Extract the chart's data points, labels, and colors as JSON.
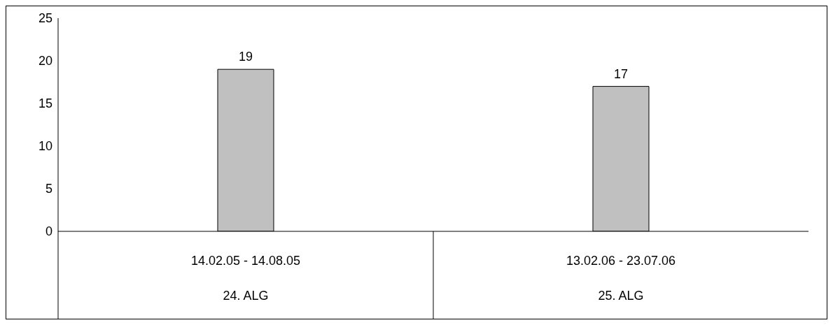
{
  "chart_data": {
    "type": "bar",
    "categories": [
      "14.02.05 - 14.08.05\n24. ALG",
      "13.02.06 - 23.07.06\n25. ALG"
    ],
    "values": [
      19,
      17
    ],
    "color": "#c0c0c0",
    "ylim": [
      0,
      25
    ],
    "yticks": [
      0,
      5,
      10,
      15,
      20,
      25
    ],
    "data_labels": true
  }
}
